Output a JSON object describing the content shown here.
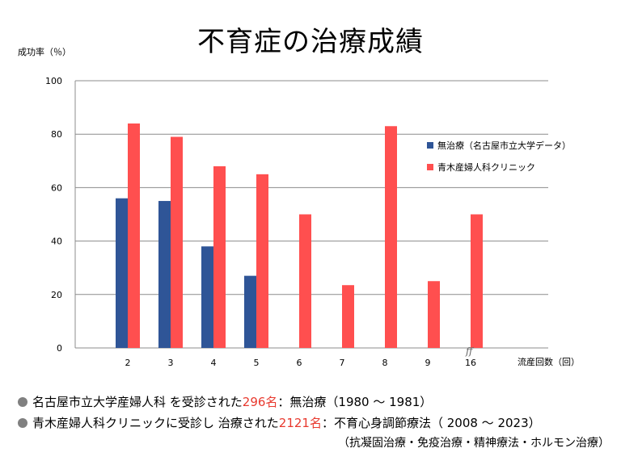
{
  "chart_data": {
    "type": "bar",
    "title": "不育症の治療成績",
    "ylabel": "成功率（％）",
    "xlabel": "流産回数（回）",
    "ylim": [
      0,
      100
    ],
    "yticks": [
      0,
      20,
      40,
      60,
      80,
      100
    ],
    "grid": true,
    "legend_position": "right",
    "axis_break_mark": "ff",
    "categories": [
      "2",
      "3",
      "4",
      "5",
      "6",
      "7",
      "8",
      "9",
      "16"
    ],
    "series": [
      {
        "name": "無治療（名古屋市立大学データ）",
        "color": "#2f5597",
        "values": [
          56,
          55,
          38,
          27,
          null,
          null,
          null,
          null,
          null
        ]
      },
      {
        "name": "青木産婦人科クリニック",
        "color": "#ff4f4f",
        "values": [
          84,
          79,
          68,
          65,
          50,
          23.5,
          83,
          25,
          50
        ]
      }
    ]
  },
  "notes": {
    "line1_pre": "名古屋市立大学産婦人科 を受診された",
    "line1_hl": "296名",
    "line1_post": "：無治療（1980 ～ 1981）",
    "line2_pre": "青木産婦人科クリニックに受診し 治療された",
    "line2_hl": "2121名",
    "line2_post": "：不育心身調節療法（ 2008 ～ 2023）",
    "line3": "（抗凝固治療・免疫治療・精神療法・ホルモン治療）"
  }
}
